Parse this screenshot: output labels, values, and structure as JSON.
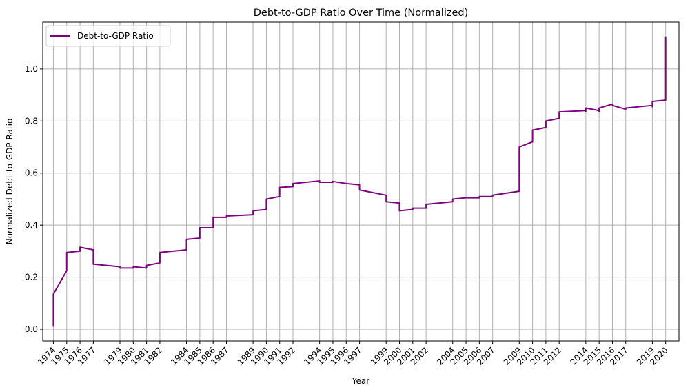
{
  "chart_data": {
    "type": "line",
    "title": "Debt-to-GDP Ratio Over Time (Normalized)",
    "xlabel": "Year",
    "ylabel": "Normalized Debt-to-GDP Ratio",
    "ylim": [
      -0.045,
      1.18
    ],
    "yticks": [
      0.0,
      0.2,
      0.4,
      0.6,
      0.8,
      1.0
    ],
    "ytick_labels": [
      "0.0",
      "0.2",
      "0.4",
      "0.6",
      "0.8",
      "1.0"
    ],
    "x_categories": [
      "1974",
      "1975",
      "1976",
      "1977",
      "1979",
      "1980",
      "1981",
      "1982",
      "1984",
      "1985",
      "1986",
      "1987",
      "1989",
      "1990",
      "1991",
      "1992",
      "1994",
      "1995",
      "1996",
      "1997",
      "1999",
      "2000",
      "2001",
      "2002",
      "2004",
      "2005",
      "2006",
      "2007",
      "2009",
      "2010",
      "2011",
      "2012",
      "2014",
      "2015",
      "2016",
      "2017",
      "2019",
      "2020"
    ],
    "grid": true,
    "legend": {
      "position": "top-left"
    },
    "series": [
      {
        "name": "Debt-to-GDP Ratio",
        "color": "#800080",
        "points": [
          [
            "1974",
            0.01
          ],
          [
            "1974",
            0.135
          ],
          [
            "1975",
            0.225
          ],
          [
            "1975",
            0.295
          ],
          [
            "1976",
            0.3
          ],
          [
            "1976",
            0.315
          ],
          [
            "1977",
            0.305
          ],
          [
            "1977",
            0.285
          ],
          [
            "1977",
            0.29
          ],
          [
            "1977",
            0.25
          ],
          [
            "1979",
            0.24
          ],
          [
            "1979",
            0.235
          ],
          [
            "1980",
            0.235
          ],
          [
            "1980",
            0.24
          ],
          [
            "1981",
            0.235
          ],
          [
            "1981",
            0.245
          ],
          [
            "1982",
            0.255
          ],
          [
            "1982",
            0.295
          ],
          [
            "1984",
            0.305
          ],
          [
            "1984",
            0.32
          ],
          [
            "1984",
            0.32
          ],
          [
            "1984",
            0.345
          ],
          [
            "1985",
            0.35
          ],
          [
            "1985",
            0.39
          ],
          [
            "1986",
            0.39
          ],
          [
            "1986",
            0.43
          ],
          [
            "1987",
            0.43
          ],
          [
            "1987",
            0.435
          ],
          [
            "1989",
            0.44
          ],
          [
            "1989",
            0.455
          ],
          [
            "1990",
            0.46
          ],
          [
            "1990",
            0.5
          ],
          [
            "1991",
            0.51
          ],
          [
            "1991",
            0.545
          ],
          [
            "1992",
            0.548
          ],
          [
            "1992",
            0.555
          ],
          [
            "1992",
            0.56
          ],
          [
            "1994",
            0.57
          ],
          [
            "1994",
            0.565
          ],
          [
            "1995",
            0.565
          ],
          [
            "1995",
            0.568
          ],
          [
            "1996",
            0.56
          ],
          [
            "1996",
            0.56
          ],
          [
            "1997",
            0.555
          ],
          [
            "1997",
            0.54
          ],
          [
            "1997",
            0.535
          ],
          [
            "1999",
            0.515
          ],
          [
            "1999",
            0.505
          ],
          [
            "1999",
            0.49
          ],
          [
            "2000",
            0.485
          ],
          [
            "2000",
            0.455
          ],
          [
            "2001",
            0.46
          ],
          [
            "2001",
            0.465
          ],
          [
            "2002",
            0.465
          ],
          [
            "2002",
            0.48
          ],
          [
            "2004",
            0.49
          ],
          [
            "2004",
            0.495
          ],
          [
            "2004",
            0.5
          ],
          [
            "2005",
            0.505
          ],
          [
            "2006",
            0.505
          ],
          [
            "2006",
            0.51
          ],
          [
            "2007",
            0.51
          ],
          [
            "2007",
            0.515
          ],
          [
            "2009",
            0.53
          ],
          [
            "2009",
            0.61
          ],
          [
            "2009",
            0.64
          ],
          [
            "2009",
            0.7
          ],
          [
            "2010",
            0.72
          ],
          [
            "2010",
            0.765
          ],
          [
            "2011",
            0.775
          ],
          [
            "2011",
            0.8
          ],
          [
            "2012",
            0.81
          ],
          [
            "2012",
            0.835
          ],
          [
            "2014",
            0.84
          ],
          [
            "2014",
            0.835
          ],
          [
            "2014",
            0.85
          ],
          [
            "2015",
            0.84
          ],
          [
            "2015",
            0.835
          ],
          [
            "2015",
            0.85
          ],
          [
            "2016",
            0.865
          ],
          [
            "2016",
            0.86
          ],
          [
            "2017",
            0.845
          ],
          [
            "2017",
            0.85
          ],
          [
            "2019",
            0.86
          ],
          [
            "2019",
            0.855
          ],
          [
            "2019",
            0.875
          ],
          [
            "2020",
            0.88
          ],
          [
            "2020",
            1.125
          ]
        ]
      }
    ]
  }
}
